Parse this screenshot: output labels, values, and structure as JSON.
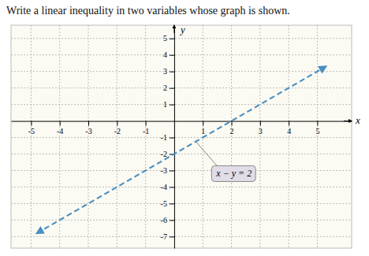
{
  "chart_data": {
    "type": "line",
    "title": "Write a linear inequality in two variables whose graph is shown.",
    "xlabel": "x",
    "ylabel": "y",
    "annotation": "x − y = 2",
    "x": [
      -4.8,
      5.3
    ],
    "values": [
      -6.8,
      3.3
    ],
    "color": "#4a8fc0",
    "line_style": "dashed",
    "xlim": [
      -5.7,
      6.2
    ],
    "ylim": [
      -7.7,
      5.8
    ],
    "xticks": [
      -5,
      -4,
      -3,
      -2,
      -1,
      1,
      2,
      3,
      4,
      5
    ],
    "yticks": [
      -7,
      -6,
      -5,
      -4,
      -3,
      -2,
      -1,
      1,
      2,
      3,
      4,
      5
    ],
    "grid": true
  }
}
